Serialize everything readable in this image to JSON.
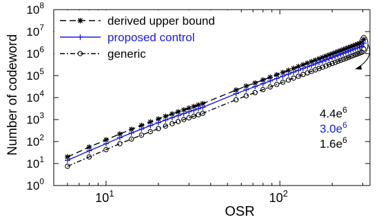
{
  "chart_data": {
    "type": "line",
    "xlabel": "OSR",
    "ylabel": "Number of codeword",
    "x_scale": "log",
    "y_scale": "log",
    "xlim": [
      5,
      330
    ],
    "ylim": [
      1,
      100000000
    ],
    "x_ticks": [
      {
        "base": "10",
        "exp": "1",
        "value": 10
      },
      {
        "base": "10",
        "exp": "2",
        "value": 100
      }
    ],
    "y_ticks": [
      {
        "base": "10",
        "exp": "0",
        "value": 1
      },
      {
        "base": "10",
        "exp": "1",
        "value": 10
      },
      {
        "base": "10",
        "exp": "2",
        "value": 100
      },
      {
        "base": "10",
        "exp": "3",
        "value": 1000
      },
      {
        "base": "10",
        "exp": "4",
        "value": 10000
      },
      {
        "base": "10",
        "exp": "5",
        "value": 100000
      },
      {
        "base": "10",
        "exp": "6",
        "value": 1000000
      },
      {
        "base": "10",
        "exp": "7",
        "value": 10000000
      },
      {
        "base": "10",
        "exp": "8",
        "value": 100000000
      }
    ],
    "grid": false,
    "legend": "top-left",
    "series": [
      {
        "name": "derived upper bound",
        "color": "#000000",
        "dash": "dashed",
        "marker": "asterisk",
        "x": [
          6,
          8,
          10,
          12,
          14,
          16,
          18,
          20,
          22,
          24,
          26,
          28,
          30,
          32,
          34,
          36,
          56,
          64,
          72,
          80,
          88,
          96,
          104,
          112,
          120,
          128,
          136,
          144,
          152,
          160,
          168,
          176,
          184,
          192,
          200,
          208,
          216,
          224,
          232,
          240,
          248,
          256,
          264,
          272,
          280,
          288,
          296,
          304
        ],
        "y": [
          20,
          56,
          120,
          220,
          360,
          540,
          780,
          1060,
          1400,
          1800,
          2250,
          2750,
          3300,
          3900,
          4600,
          5300,
          22000,
          33000,
          46000,
          63000,
          84000,
          109000,
          138000,
          172000,
          212000,
          258000,
          310000,
          367000,
          430000,
          500000,
          580000,
          665000,
          760000,
          865000,
          975000,
          1100000,
          1230000,
          1370000,
          1520000,
          1680000,
          1850000,
          2040000,
          2240000,
          2450000,
          2680000,
          2920000,
          3180000,
          4400000
        ]
      },
      {
        "name": "proposed control",
        "color": "#1a1adf",
        "dash": "solid",
        "marker": "plus",
        "x": [
          6,
          8,
          10,
          12,
          14,
          16,
          18,
          20,
          22,
          24,
          26,
          28,
          30,
          32,
          34,
          36,
          56,
          64,
          72,
          80,
          88,
          96,
          104,
          112,
          120,
          128,
          136,
          144,
          152,
          160,
          168,
          176,
          184,
          192,
          200,
          208,
          216,
          224,
          232,
          240,
          248,
          256,
          264,
          272,
          280,
          288,
          296,
          304
        ],
        "y": [
          14,
          38,
          80,
          150,
          245,
          370,
          530,
          720,
          950,
          1220,
          1530,
          1870,
          2250,
          2660,
          3120,
          3600,
          15000,
          22500,
          31500,
          43000,
          57000,
          74000,
          94000,
          117000,
          144000,
          175000,
          210000,
          250000,
          293000,
          340000,
          395000,
          452000,
          517000,
          588000,
          663000,
          745000,
          835000,
          930000,
          1030000,
          1140000,
          1260000,
          1390000,
          1520000,
          1670000,
          1820000,
          1990000,
          2160000,
          3000000
        ]
      },
      {
        "name": "generic",
        "color": "#000000",
        "dash": "dashdot",
        "marker": "circle",
        "x": [
          6,
          8,
          10,
          12,
          14,
          16,
          18,
          20,
          22,
          24,
          26,
          28,
          30,
          32,
          34,
          36,
          56,
          64,
          72,
          80,
          88,
          96,
          104,
          112,
          120,
          128,
          136,
          144,
          152,
          160,
          168,
          176,
          184,
          192,
          200,
          208,
          216,
          224,
          232,
          240,
          248,
          256,
          264,
          272,
          280,
          288,
          296,
          304
        ],
        "y": [
          7.5,
          20,
          43,
          80,
          130,
          197,
          282,
          385,
          506,
          650,
          815,
          1000,
          1200,
          1420,
          1660,
          1920,
          8000,
          12000,
          16800,
          23000,
          30500,
          39500,
          50000,
          62500,
          77000,
          93500,
          112000,
          133000,
          156000,
          182000,
          210000,
          241000,
          275000,
          313000,
          353000,
          397000,
          445000,
          496000,
          551000,
          610000,
          673000,
          740000,
          812000,
          889000,
          970000,
          1060000,
          1150000,
          1600000
        ]
      }
    ],
    "annotations": [
      {
        "text": "4.4e",
        "sup": "6",
        "color": "#000000",
        "value": 4400000
      },
      {
        "text": "3.0e",
        "sup": "6",
        "color": "#1a1adf",
        "value": 3000000
      },
      {
        "text": "1.6e",
        "sup": "6",
        "color": "#000000",
        "value": 1600000
      }
    ]
  }
}
